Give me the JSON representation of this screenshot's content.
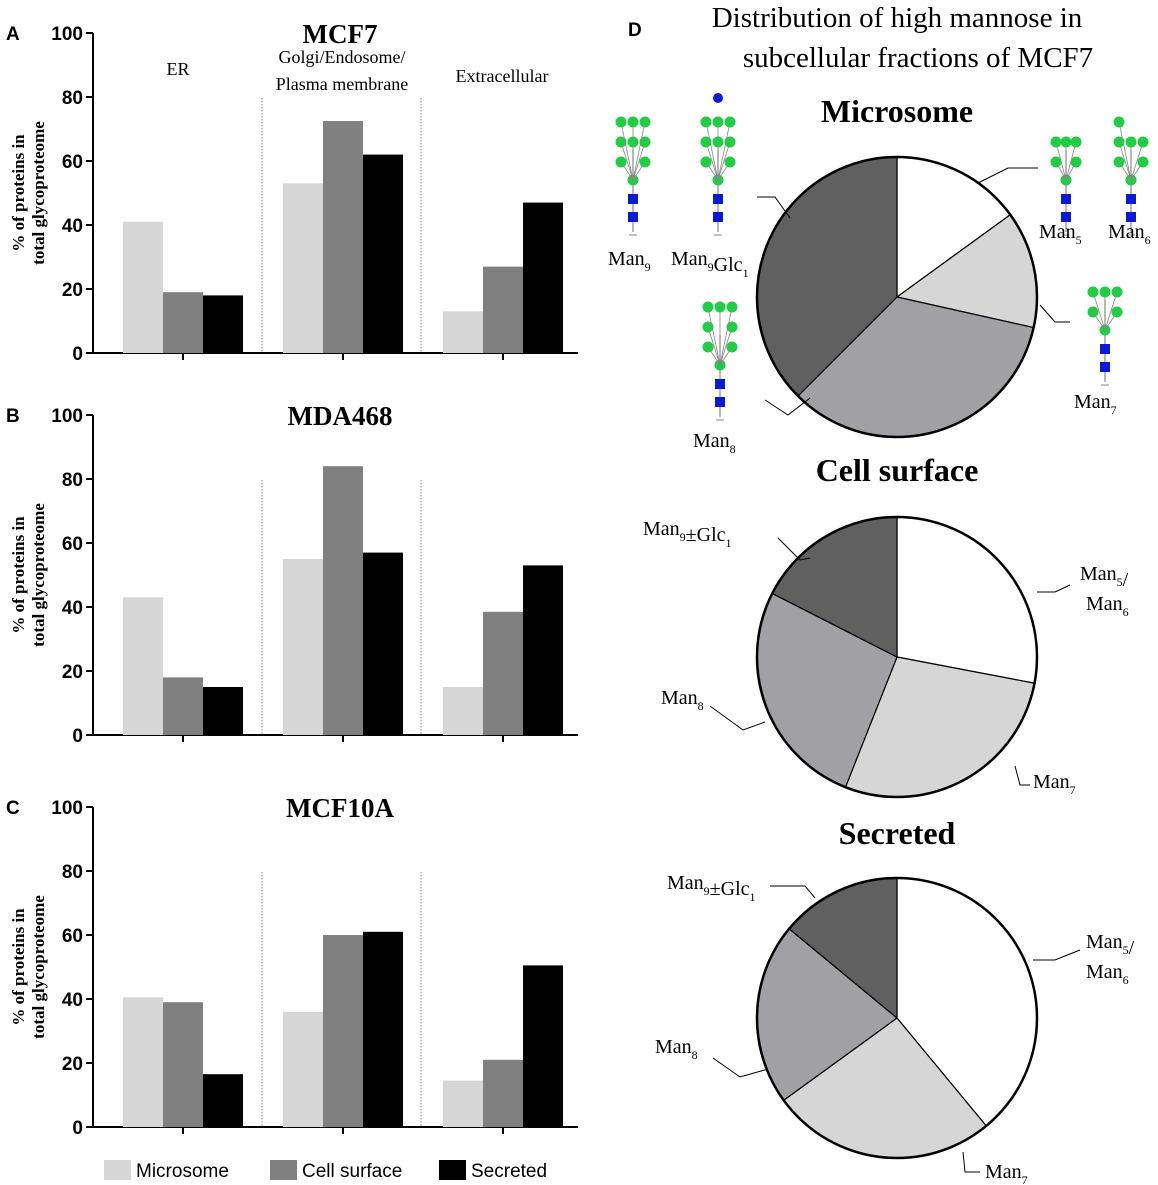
{
  "colors": {
    "microsome": "#d6d6d6",
    "cell_surface": "#808080",
    "secreted": "#000000",
    "pie_white": "#ffffff",
    "pie_light": "#d6d6d6",
    "pie_mid": "#a0a0a5",
    "pie_dark": "#606060",
    "glycan_mannose": "#22cc44",
    "glycan_glcnac": "#0a1ad6",
    "glycan_glc": "#0a1ad6"
  },
  "legend": [
    {
      "label": "Microsome",
      "color": "#d6d6d6"
    },
    {
      "label": "Cell surface",
      "color": "#808080"
    },
    {
      "label": "Secreted",
      "color": "#000000"
    }
  ],
  "chart_data": [
    {
      "panel": "A",
      "type": "bar",
      "title": "MCF7",
      "ylabel_line1": "% of proteins in",
      "ylabel_line2": "total glycoproteome",
      "ylim": [
        0,
        100
      ],
      "yticks": [
        0,
        20,
        40,
        60,
        80,
        100
      ],
      "group_labels": [
        [
          "ER"
        ],
        [
          "Golgi/Endosome/",
          "Plasma membrane"
        ],
        [
          "Extracellular"
        ]
      ],
      "categories": [
        "ER",
        "Golgi/Endosome/Plasma membrane",
        "Extracellular"
      ],
      "series": [
        {
          "name": "Microsome",
          "values": [
            41,
            53,
            13
          ]
        },
        {
          "name": "Cell surface",
          "values": [
            19,
            72.5,
            27
          ]
        },
        {
          "name": "Secreted",
          "values": [
            18,
            62,
            47
          ]
        }
      ]
    },
    {
      "panel": "B",
      "type": "bar",
      "title": "MDA468",
      "ylabel_line1": "% of proteins in",
      "ylabel_line2": "total glycoproteome",
      "ylim": [
        0,
        100
      ],
      "yticks": [
        0,
        20,
        40,
        60,
        80,
        100
      ],
      "group_labels": [],
      "categories": [
        "ER",
        "Golgi/Endosome/Plasma membrane",
        "Extracellular"
      ],
      "series": [
        {
          "name": "Microsome",
          "values": [
            43,
            55,
            15
          ]
        },
        {
          "name": "Cell surface",
          "values": [
            18,
            84,
            38.5
          ]
        },
        {
          "name": "Secreted",
          "values": [
            15,
            57,
            53
          ]
        }
      ]
    },
    {
      "panel": "C",
      "type": "bar",
      "title": "MCF10A",
      "ylabel_line1": "% of proteins in",
      "ylabel_line2": "total glycoproteome",
      "ylim": [
        0,
        100
      ],
      "yticks": [
        0,
        20,
        40,
        60,
        80,
        100
      ],
      "group_labels": [],
      "categories": [
        "ER",
        "Golgi/Endosome/Plasma membrane",
        "Extracellular"
      ],
      "series": [
        {
          "name": "Microsome",
          "values": [
            40.5,
            36,
            14.5
          ]
        },
        {
          "name": "Cell surface",
          "values": [
            39,
            60,
            21
          ]
        },
        {
          "name": "Secreted",
          "values": [
            16.5,
            61,
            50.5
          ]
        }
      ]
    },
    {
      "panel": "D",
      "type": "pie",
      "title_line1": "Distribution of high mannose in",
      "title_line2": "subcellular fractions of MCF7",
      "pies": [
        {
          "title": "Microsome",
          "slices": [
            {
              "label": "Man5",
              "base": "Man",
              "sub": "5",
              "value": 15,
              "color": "#ffffff"
            },
            {
              "label": "Man6",
              "base": "Man",
              "sub": "6",
              "value": 0,
              "color": "#ffffff"
            },
            {
              "label": "Man7",
              "base": "Man",
              "sub": "7",
              "value": 13.5,
              "color": "#d6d6d6"
            },
            {
              "label": "Man8",
              "base": "Man",
              "sub": "8",
              "value": 34,
              "color": "#a0a0a5"
            },
            {
              "label": "Man9/Man9Glc1",
              "base": "",
              "sub": "",
              "value": 37.5,
              "color": "#606060"
            }
          ],
          "labels": [
            {
              "parts": [
                [
                  "Man",
                  "9"
                ]
              ]
            },
            {
              "parts": [
                [
                  "Man",
                  "9"
                ],
                [
                  "Glc",
                  "1"
                ]
              ]
            },
            {
              "parts": [
                [
                  "Man",
                  "5"
                ]
              ]
            },
            {
              "parts": [
                [
                  "Man",
                  "6"
                ]
              ]
            },
            {
              "parts": [
                [
                  "Man",
                  "7"
                ]
              ]
            },
            {
              "parts": [
                [
                  "Man",
                  "8"
                ]
              ]
            }
          ]
        },
        {
          "title": "Cell surface",
          "slices": [
            {
              "label": "Man5/Man6",
              "value": 28,
              "color": "#ffffff"
            },
            {
              "label": "Man7",
              "value": 28,
              "color": "#d6d6d6"
            },
            {
              "label": "Man8",
              "value": 26.5,
              "color": "#a0a0a5"
            },
            {
              "label": "Man9±Glc1",
              "value": 17.5,
              "color": "#606060"
            }
          ],
          "labels": [
            {
              "parts": [
                [
                  "Man",
                  "9"
                ],
                [
                  "±Glc",
                  "1"
                ]
              ]
            },
            {
              "parts": [
                [
                  "Man",
                  "5"
                ],
                [
                  "/",
                  ""
                ]
              ]
            },
            {
              "parts": [
                [
                  "Man",
                  "6"
                ]
              ]
            },
            {
              "parts": [
                [
                  "Man",
                  "8"
                ]
              ]
            },
            {
              "parts": [
                [
                  "Man",
                  "7"
                ]
              ]
            }
          ]
        },
        {
          "title": "Secreted",
          "slices": [
            {
              "label": "Man5/Man6",
              "value": 39,
              "color": "#ffffff"
            },
            {
              "label": "Man7",
              "value": 26,
              "color": "#d6d6d6"
            },
            {
              "label": "Man8",
              "value": 21,
              "color": "#a0a0a5"
            },
            {
              "label": "Man9±Glc1",
              "value": 14,
              "color": "#606060"
            }
          ],
          "labels": [
            {
              "parts": [
                [
                  "Man",
                  "9"
                ],
                [
                  "±Glc",
                  "1"
                ]
              ]
            },
            {
              "parts": [
                [
                  "Man",
                  "5"
                ],
                [
                  "/",
                  ""
                ]
              ]
            },
            {
              "parts": [
                [
                  "Man",
                  "6"
                ]
              ]
            },
            {
              "parts": [
                [
                  "Man",
                  "8"
                ]
              ]
            },
            {
              "parts": [
                [
                  "Man",
                  "7"
                ]
              ]
            }
          ]
        }
      ]
    }
  ]
}
